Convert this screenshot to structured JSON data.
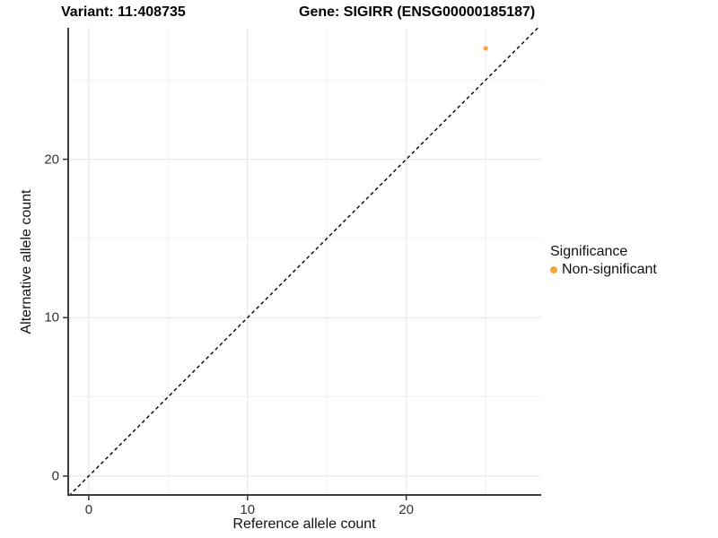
{
  "titles": {
    "variant": "Variant: 11:408735",
    "gene": "Gene: SIGIRR (ENSG00000185187)"
  },
  "legend": {
    "title": "Significance",
    "items": [
      {
        "label": "Non-significant",
        "color": "#FAA43A"
      }
    ]
  },
  "colors": {
    "point_orange": "#FAA43A",
    "major_grid": "#E4E4E4",
    "minor_grid": "#F1F1F1",
    "axis_line": "#3C3C3C",
    "tick_mark": "#333333",
    "identity_line": "#000000",
    "background": "#FFFFFF"
  },
  "chart_data": {
    "type": "scatter",
    "title": "Variant: 11:408735 | Gene: SIGIRR (ENSG00000185187)",
    "xlabel": "Reference allele count",
    "ylabel": "Alternative allele count",
    "xlim": [
      -1.35,
      28.5
    ],
    "ylim": [
      -1.25,
      28.3
    ],
    "x_ticks": [
      0,
      10,
      20
    ],
    "y_ticks": [
      0,
      10,
      20
    ],
    "x_minor_ticks": [
      5,
      15,
      25
    ],
    "y_minor_ticks": [
      5,
      15,
      25
    ],
    "grid": "major+minor",
    "legend_position": "right",
    "series": [
      {
        "name": "Non-significant",
        "color": "#FAA43A",
        "points": [
          {
            "x": 25,
            "y": 27
          }
        ]
      }
    ],
    "reference_line": {
      "type": "identity",
      "style": "dashed",
      "color": "#000000"
    }
  }
}
